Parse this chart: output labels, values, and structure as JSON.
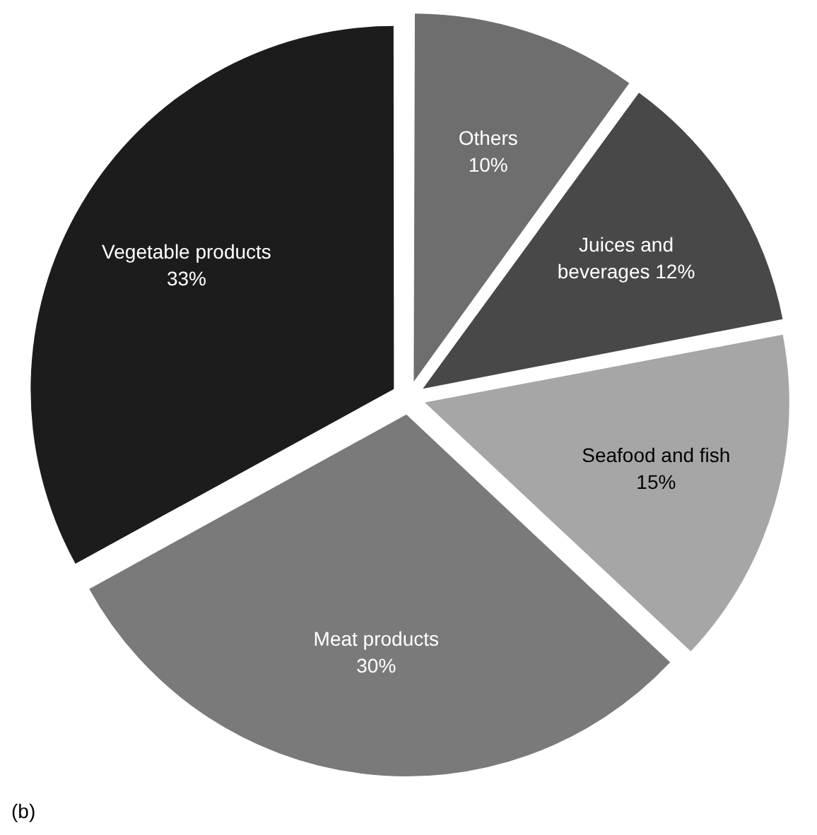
{
  "chart_data": {
    "type": "pie",
    "categories": [
      "Others",
      "Juices and beverages",
      "Seafood and fish",
      "Meat products",
      "Vegetable products"
    ],
    "values": [
      10,
      12,
      15,
      30,
      33
    ],
    "colors": [
      "#6e6e6e",
      "#484848",
      "#a6a6a6",
      "#7a7a7a",
      "#1c1c1c"
    ],
    "value_labels": [
      "10%",
      "12%",
      "15%",
      "30%",
      "33%"
    ],
    "legend": false,
    "annotations": [
      "(b)"
    ]
  }
}
